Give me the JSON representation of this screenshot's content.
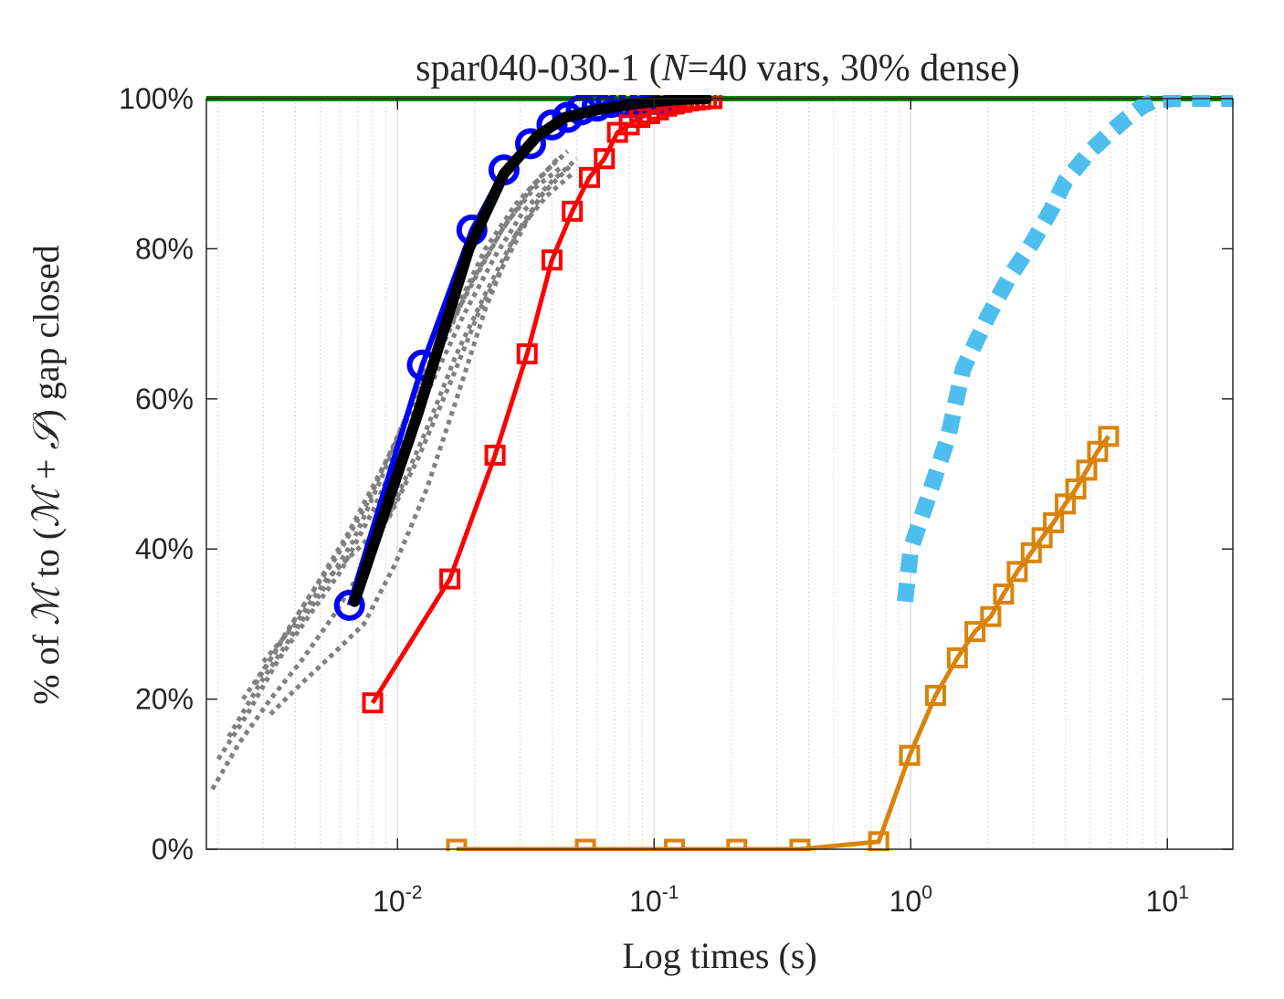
{
  "chart_data": {
    "type": "line",
    "title_parts": [
      "spar040-030-1 (",
      "N",
      "=40 vars, 30% dense)"
    ],
    "xlabel": "Log times (s)",
    "ylabel_parts": [
      "% of ",
      "ℳ",
      " to (",
      "ℳ",
      " + ",
      "𝒮",
      ") gap closed"
    ],
    "x_scale": "log",
    "xlim": [
      0.0018,
      18
    ],
    "ylim": [
      0,
      100
    ],
    "x_ticks": [
      {
        "base": "10",
        "exp": "-2",
        "value": 0.01
      },
      {
        "base": "10",
        "exp": "-1",
        "value": 0.1
      },
      {
        "base": "10",
        "exp": "0",
        "value": 1
      },
      {
        "base": "10",
        "exp": "1",
        "value": 10
      }
    ],
    "y_ticks": [
      {
        "label": "0%",
        "value": 0
      },
      {
        "label": "20%",
        "value": 20
      },
      {
        "label": "40%",
        "value": 40
      },
      {
        "label": "60%",
        "value": 60
      },
      {
        "label": "80%",
        "value": 80
      },
      {
        "label": "100%",
        "value": 100
      }
    ],
    "grid": "x-major-and-minor",
    "reference_line": {
      "y": 100,
      "color": "#008000"
    },
    "series": [
      {
        "style": "dotted",
        "color": "#808080",
        "marker": "none",
        "x": [
          0.0019,
          0.0024,
          0.0032,
          0.0042,
          0.0056,
          0.0075,
          0.01,
          0.013,
          0.017,
          0.022,
          0.029,
          0.038,
          0.048
        ],
        "y": [
          8,
          14,
          20,
          25,
          31,
          38,
          47,
          56,
          66,
          74,
          82,
          87,
          90
        ]
      },
      {
        "style": "dotted",
        "color": "#808080",
        "marker": "none",
        "x": [
          0.002,
          0.0026,
          0.0034,
          0.0045,
          0.006,
          0.008,
          0.0105,
          0.014,
          0.018,
          0.024,
          0.031,
          0.04,
          0.05
        ],
        "y": [
          12,
          18,
          25,
          31,
          37,
          45,
          54,
          63,
          71,
          79,
          85,
          89,
          92
        ]
      },
      {
        "style": "dotted",
        "color": "#808080",
        "marker": "none",
        "x": [
          0.0022,
          0.0029,
          0.0038,
          0.005,
          0.0067,
          0.0088,
          0.0115,
          0.015,
          0.02,
          0.026,
          0.034,
          0.044
        ],
        "y": [
          15,
          22,
          28,
          34,
          41,
          50,
          60,
          68,
          76,
          83,
          88,
          91
        ]
      },
      {
        "style": "dotted",
        "color": "#808080",
        "marker": "none",
        "x": [
          0.0025,
          0.0033,
          0.0044,
          0.0058,
          0.0076,
          0.01,
          0.013,
          0.017,
          0.022,
          0.029,
          0.037,
          0.046
        ],
        "y": [
          20,
          26,
          33,
          39,
          46,
          55,
          64,
          72,
          80,
          86,
          90,
          93
        ]
      },
      {
        "style": "dotted",
        "color": "#808080",
        "marker": "none",
        "x": [
          0.0028,
          0.0037,
          0.0048,
          0.0064,
          0.0085,
          0.0112,
          0.0145,
          0.019,
          0.025,
          0.033,
          0.042
        ],
        "y": [
          22,
          29,
          35,
          42,
          50,
          58,
          66,
          75,
          82,
          88,
          92
        ]
      },
      {
        "style": "dotted",
        "color": "#808080",
        "marker": "none",
        "x": [
          0.0032,
          0.0042,
          0.0056,
          0.0074,
          0.0098,
          0.013,
          0.017,
          0.022,
          0.029,
          0.038
        ],
        "y": [
          18,
          22,
          26,
          30,
          38,
          48,
          60,
          72,
          82,
          88
        ]
      },
      {
        "style": "dotted",
        "color": "#808080",
        "marker": "none",
        "x": [
          0.003,
          0.004,
          0.0053,
          0.007,
          0.0092,
          0.012,
          0.016,
          0.021,
          0.028,
          0.036,
          0.047
        ],
        "y": [
          25,
          30,
          36,
          40,
          44,
          52,
          62,
          72,
          80,
          87,
          91
        ]
      },
      {
        "style": "solid",
        "color": "#0000ff",
        "marker": "circle",
        "x": [
          0.0065,
          0.0125,
          0.0195,
          0.026,
          0.033,
          0.04,
          0.046,
          0.052,
          0.06,
          0.068,
          0.076,
          0.084,
          0.092,
          0.1,
          0.108,
          0.115
        ],
        "y": [
          32.5,
          64.5,
          82.5,
          90.5,
          94,
          96.5,
          97.5,
          98.5,
          99,
          99.5,
          99.5,
          99.8,
          99.8,
          99.9,
          99.9,
          100
        ]
      },
      {
        "style": "solid",
        "color": "#000000",
        "marker": "none",
        "x": [
          0.0068,
          0.012,
          0.019,
          0.026,
          0.035,
          0.045,
          0.06,
          0.08,
          0.1,
          0.13,
          0.16
        ],
        "y": [
          33,
          58,
          80,
          90,
          95,
          97.5,
          98.5,
          99.2,
          99.6,
          99.9,
          100
        ]
      },
      {
        "style": "solid",
        "color": "#ff0000",
        "marker": "square",
        "x": [
          0.008,
          0.016,
          0.024,
          0.032,
          0.04,
          0.048,
          0.056,
          0.064,
          0.072,
          0.08,
          0.088,
          0.096,
          0.104,
          0.112,
          0.12,
          0.128,
          0.136,
          0.144,
          0.152,
          0.16,
          0.168
        ],
        "y": [
          19.5,
          36,
          52.5,
          66,
          78.5,
          85,
          89.5,
          92,
          95.5,
          96.5,
          97.5,
          98,
          98.5,
          99,
          99.3,
          99.5,
          99.7,
          99.8,
          99.9,
          100,
          100
        ]
      },
      {
        "style": "dotted",
        "color": "#4dbeee",
        "marker": "none",
        "x": [
          0.95,
          1.0,
          1.2,
          1.4,
          1.6,
          2.0,
          2.4,
          3.0,
          3.5,
          4.0,
          5.0,
          6.0,
          7.0,
          8.0,
          9.0,
          11.0,
          14.0,
          18.0
        ],
        "y": [
          33,
          40,
          48,
          55,
          64,
          71,
          76,
          81,
          85,
          89,
          93,
          95.5,
          97.5,
          99,
          99.8,
          100,
          100,
          100
        ]
      },
      {
        "style": "solid",
        "color": "#d9830b",
        "marker": "square",
        "x": [
          0.017,
          0.054,
          0.12,
          0.21,
          0.37,
          0.75,
          0.99,
          1.25,
          1.52,
          1.78,
          2.05,
          2.3,
          2.6,
          2.95,
          3.25,
          3.6,
          4.0,
          4.4,
          4.85,
          5.35,
          5.9
        ],
        "y": [
          0,
          0,
          0,
          0,
          0,
          1,
          12.5,
          20.5,
          25.5,
          29,
          31,
          34,
          37,
          39.5,
          41.5,
          43.5,
          46,
          48,
          50.5,
          53,
          55
        ]
      }
    ]
  }
}
